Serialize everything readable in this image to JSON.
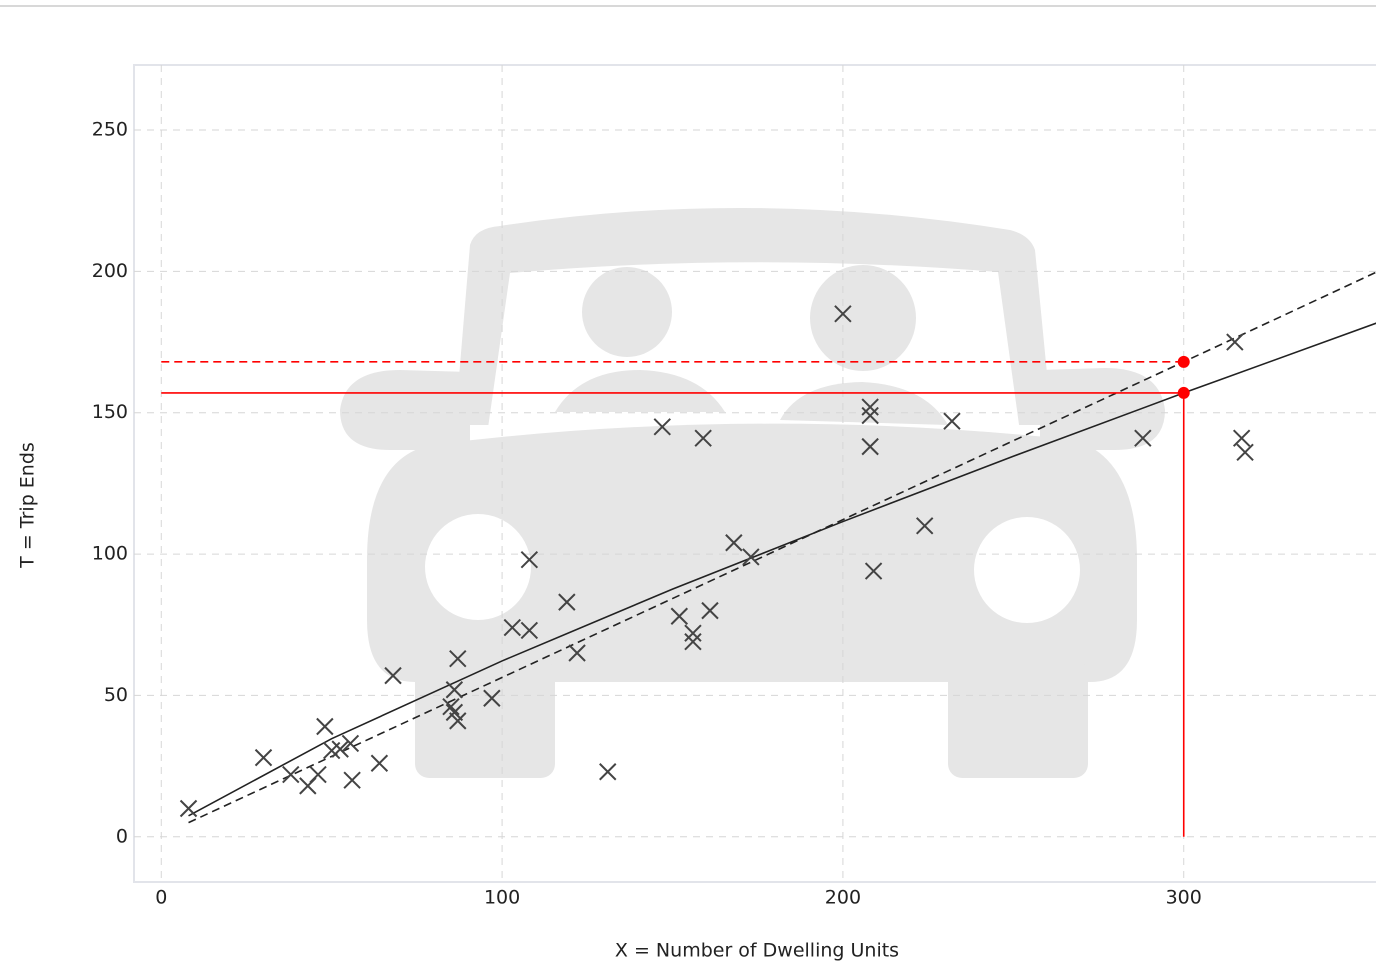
{
  "chart_data": {
    "type": "scatter",
    "x_label": "X = Number of Dwelling Units",
    "y_label": "T = Trip Ends",
    "xlim": [
      -8,
      357
    ],
    "ylim": [
      -16,
      273
    ],
    "xticks": [
      0,
      100,
      200,
      300
    ],
    "yticks": [
      0,
      50,
      100,
      150,
      200,
      250
    ],
    "grid": true,
    "marker_color": "#444444",
    "x": [
      8,
      30,
      38,
      43,
      46,
      48,
      50,
      52.5,
      55.5,
      56,
      64,
      68,
      85,
      86,
      86,
      87,
      87,
      97,
      103,
      108,
      108,
      119,
      122,
      131,
      147,
      152,
      156,
      156,
      159,
      161,
      168,
      173,
      200,
      208,
      208,
      208,
      209,
      224,
      232,
      288,
      315,
      317,
      318
    ],
    "y": [
      10,
      28,
      22,
      18,
      22,
      39,
      30.5,
      31,
      33,
      20,
      26,
      57,
      46,
      52,
      44,
      41,
      63,
      49,
      74,
      73,
      98,
      83,
      65,
      23,
      145,
      78,
      72,
      69,
      141,
      80,
      104,
      99,
      185,
      152,
      149,
      138,
      94,
      110,
      147,
      141,
      175,
      141,
      136
    ],
    "lines": [
      {
        "x": [
          8,
          50,
          100,
          150,
          200,
          250,
          300,
          357
        ],
        "y": [
          7.4,
          34.7,
          62.2,
          87.6,
          111.5,
          134.6,
          157,
          181.9
        ],
        "color": "#222222",
        "dashed": false
      },
      {
        "x": [
          8,
          300,
          357
        ],
        "y": [
          5,
          168,
          200
        ],
        "color": "#222222",
        "dashed": true
      },
      {
        "x": [
          0,
          300
        ],
        "y": [
          168,
          168
        ],
        "color": "#ff0000",
        "dashed": true
      },
      {
        "x": [
          0,
          300
        ],
        "y": [
          157,
          157
        ],
        "color": "#ff0000",
        "dashed": false
      },
      {
        "x": [
          300,
          300
        ],
        "y": [
          0,
          157
        ],
        "color": "#ff0000",
        "dashed": false
      }
    ],
    "highlight": {
      "x": [
        300,
        300
      ],
      "y": [
        168,
        157
      ],
      "color": "#ff0000"
    }
  }
}
